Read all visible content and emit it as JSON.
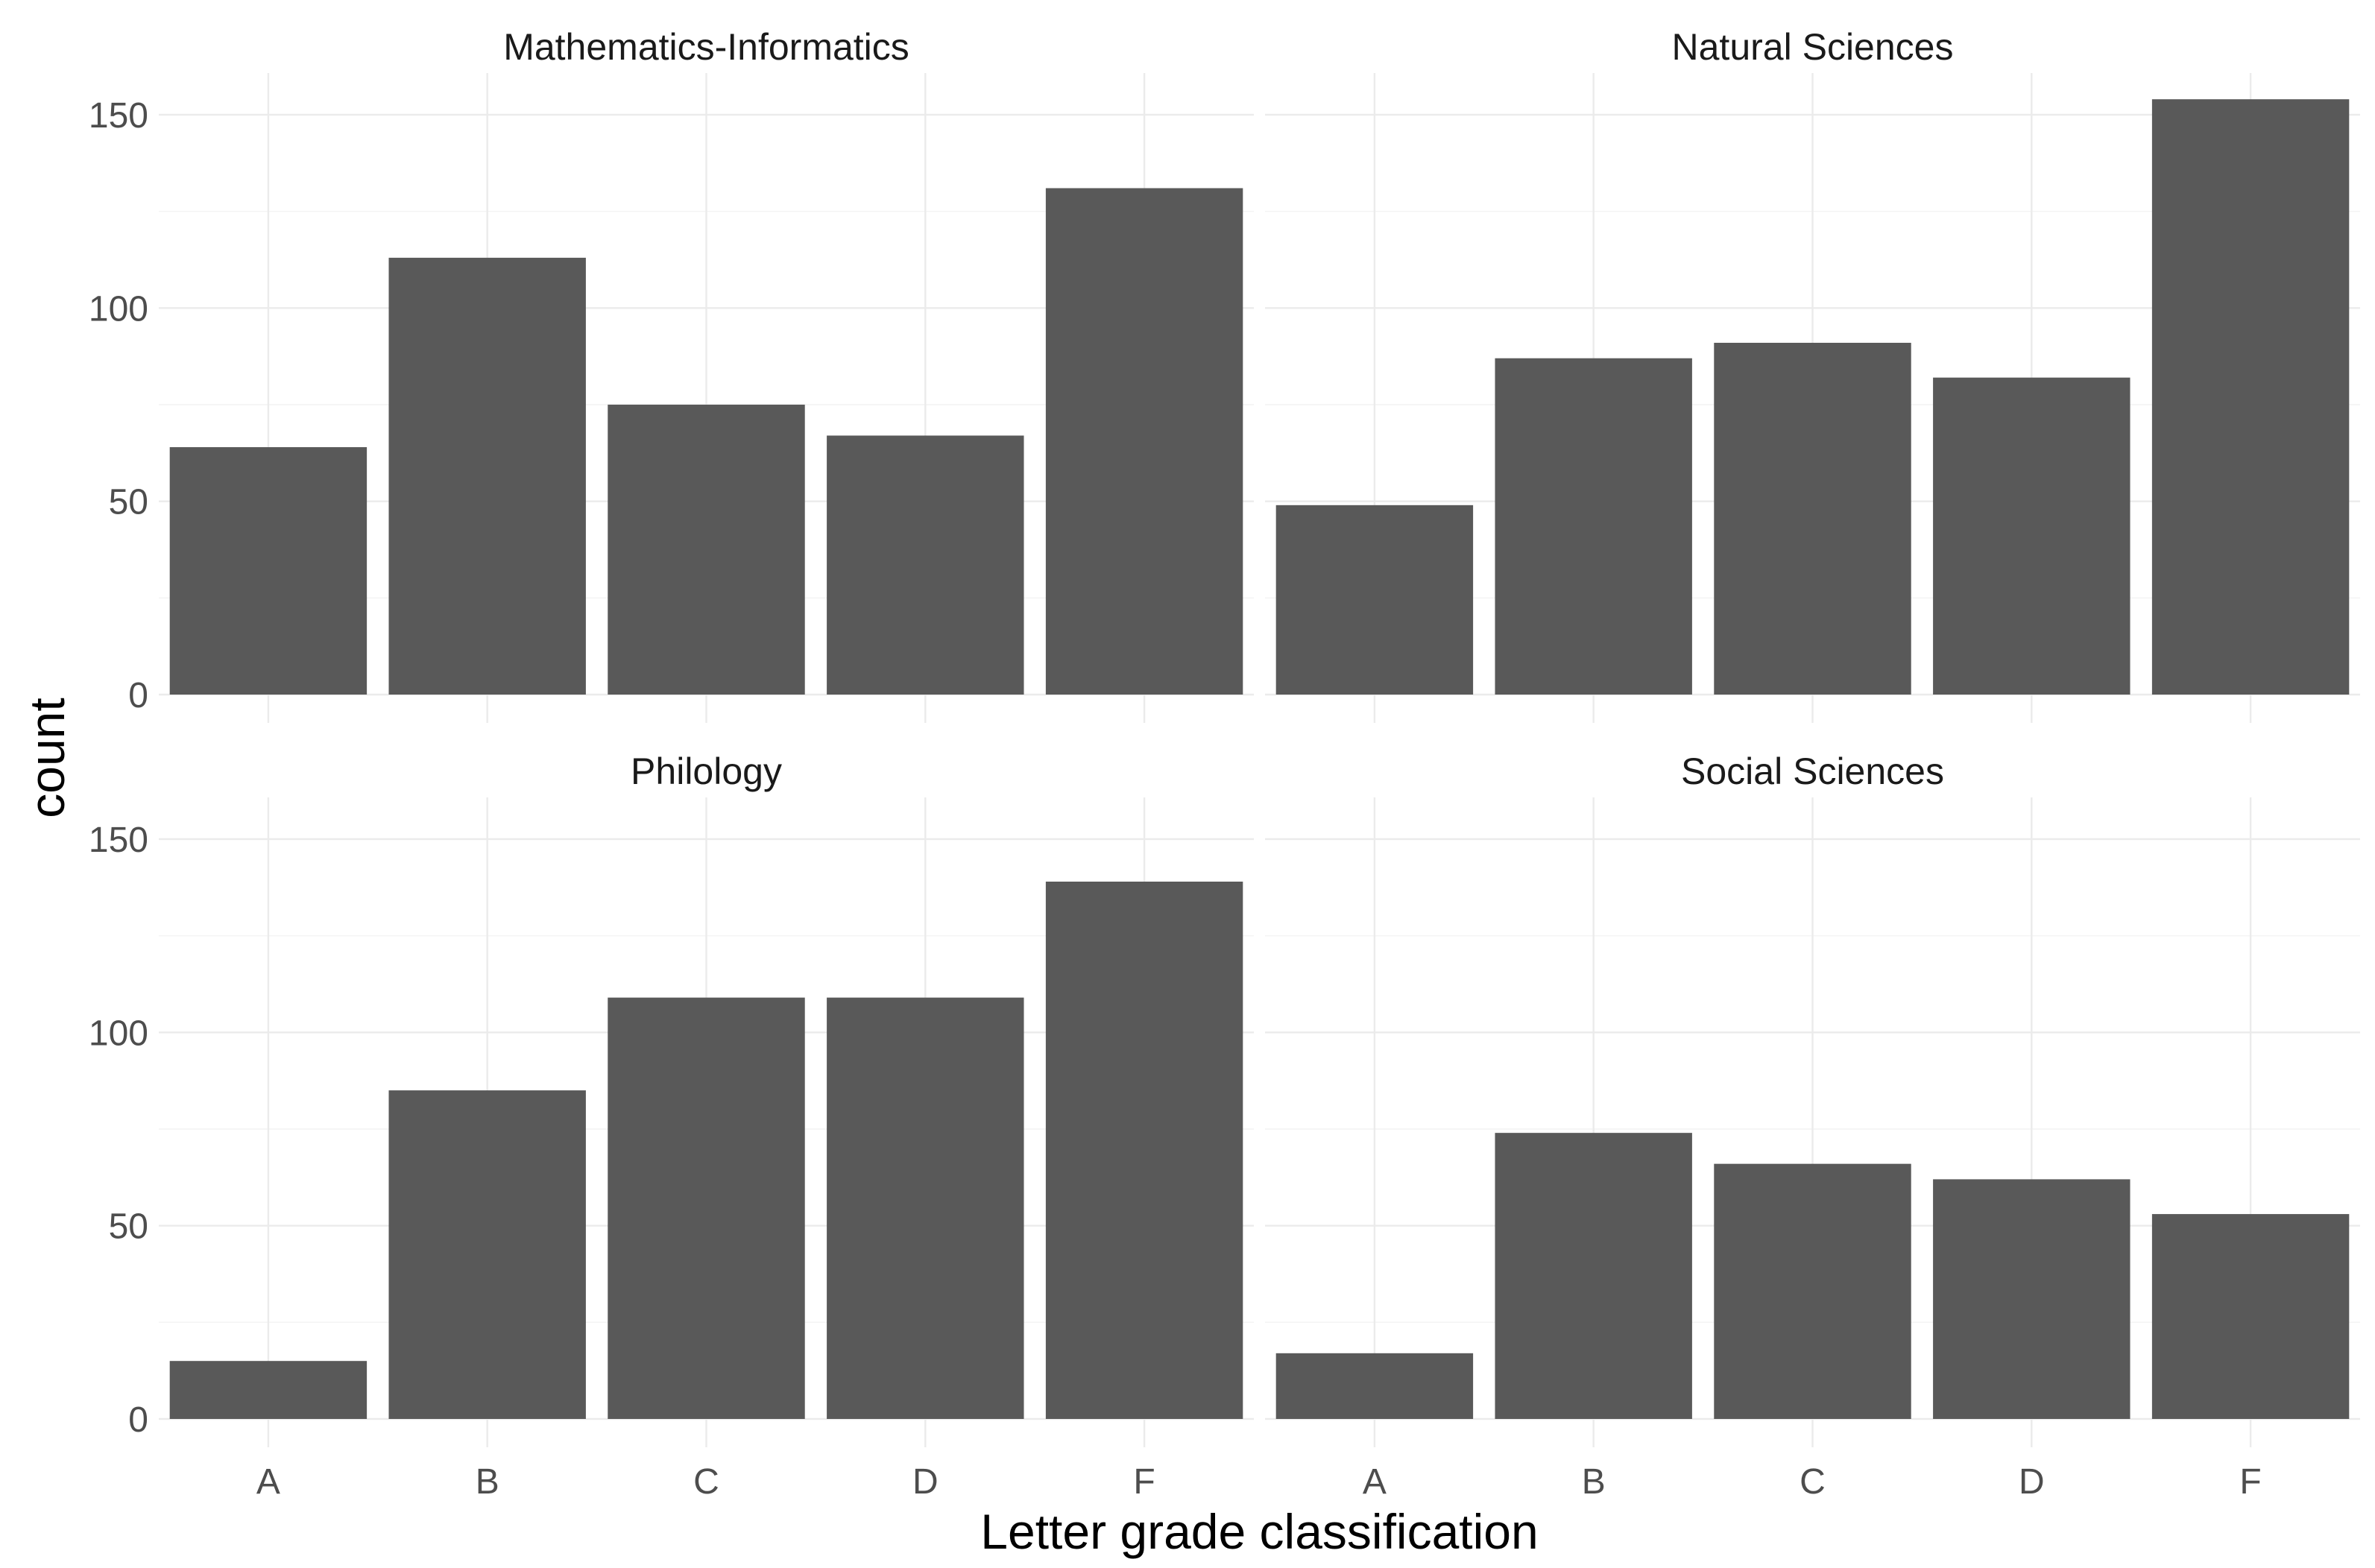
{
  "chart_data": {
    "type": "bar",
    "layout": "facet-2x2",
    "xlabel": "Letter grade classification",
    "ylabel": "count",
    "ylim": [
      0,
      155
    ],
    "yticks": [
      0,
      50,
      100,
      150
    ],
    "categories": [
      "A",
      "B",
      "C",
      "D",
      "F"
    ],
    "bar_color": "#595959",
    "panels": [
      {
        "title": "Mathematics-Informatics",
        "values": [
          64,
          113,
          75,
          67,
          131
        ]
      },
      {
        "title": "Natural Sciences",
        "values": [
          49,
          87,
          91,
          82,
          154
        ]
      },
      {
        "title": "Philology",
        "values": [
          15,
          85,
          109,
          109,
          139
        ]
      },
      {
        "title": "Social Sciences",
        "values": [
          17,
          74,
          66,
          62,
          53
        ]
      }
    ]
  }
}
